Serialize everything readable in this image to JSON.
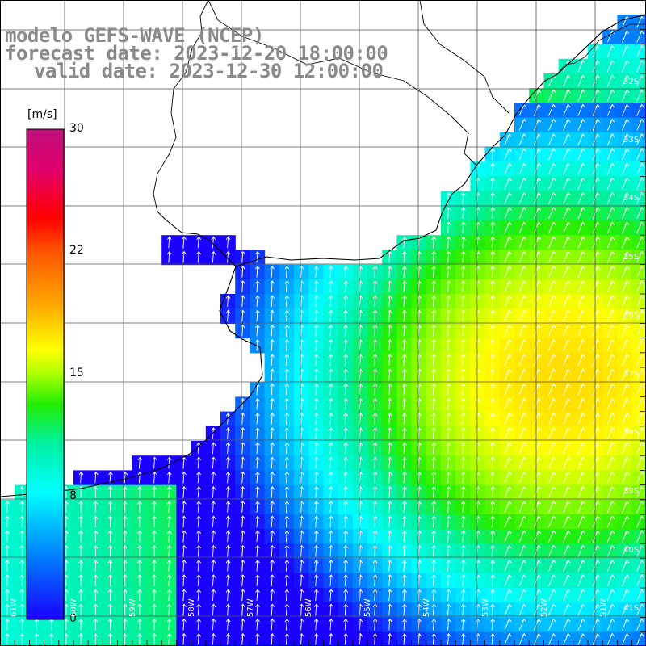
{
  "title": {
    "line1": "modelo GEFS-WAVE (NCEP)",
    "line2": "forecast date: 2023-12-20 18:00:00",
    "line3": "valid date: 2023-12-30 12:00:00"
  },
  "colorbar": {
    "unit": "[m/s]",
    "ticks": [
      {
        "label": "30",
        "value": 30
      },
      {
        "label": "22",
        "value": 22
      },
      {
        "label": "15",
        "value": 15
      },
      {
        "label": "8",
        "value": 8
      },
      {
        "label": "0",
        "value": 0
      }
    ],
    "colors": [
      "#1a00ff",
      "#00aaff",
      "#00ffff",
      "#00e0a0",
      "#22ee00",
      "#88ff00",
      "#ffff00",
      "#ffaa00",
      "#ff5500",
      "#ff0000",
      "#e0006e",
      "#c0107a"
    ]
  },
  "map": {
    "lat_labels": [
      "32S",
      "33S",
      "34S",
      "35S",
      "36S",
      "37S",
      "38S",
      "39S",
      "40S",
      "41S"
    ],
    "lon_labels": [
      "61W",
      "60W",
      "59W",
      "58W",
      "57W",
      "56W",
      "55W",
      "54W",
      "53W",
      "52W",
      "51W"
    ],
    "land_color": "#ffffff",
    "grid_color": "#000000"
  }
}
